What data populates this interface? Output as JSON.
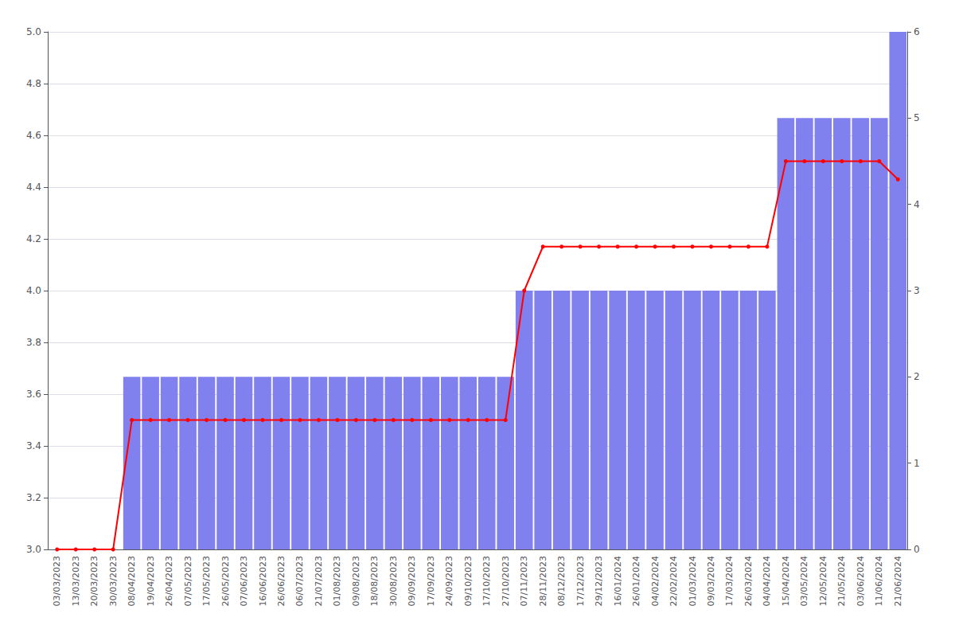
{
  "chart_data": {
    "type": "bar",
    "categories": [
      "03/03/2023",
      "13/03/2023",
      "20/03/2023",
      "30/03/2023",
      "08/04/2023",
      "19/04/2023",
      "26/04/2023",
      "07/05/2023",
      "17/05/2023",
      "26/05/2023",
      "07/06/2023",
      "16/06/2023",
      "26/06/2023",
      "06/07/2023",
      "21/07/2023",
      "01/08/2023",
      "09/08/2023",
      "18/08/2023",
      "30/08/2023",
      "09/09/2023",
      "17/09/2023",
      "24/09/2023",
      "09/10/2023",
      "17/10/2023",
      "27/10/2023",
      "07/11/2023",
      "28/11/2023",
      "08/12/2023",
      "17/12/2023",
      "29/12/2023",
      "16/01/2024",
      "26/01/2024",
      "04/02/2024",
      "22/02/2024",
      "01/03/2024",
      "09/03/2024",
      "17/03/2024",
      "26/03/2024",
      "04/04/2024",
      "15/04/2024",
      "03/05/2024",
      "12/05/2024",
      "21/05/2024",
      "03/06/2024",
      "11/06/2024",
      "21/06/2024"
    ],
    "series": [
      {
        "type": "bar",
        "axis": "y2",
        "color": "#8080ee",
        "values": [
          0,
          0,
          0,
          0,
          2,
          2,
          2,
          2,
          2,
          2,
          2,
          2,
          2,
          2,
          2,
          2,
          2,
          2,
          2,
          2,
          2,
          2,
          2,
          2,
          2,
          3,
          3,
          3,
          3,
          3,
          3,
          3,
          3,
          3,
          3,
          3,
          3,
          3,
          3,
          5,
          5,
          5,
          5,
          5,
          5,
          6
        ]
      },
      {
        "type": "line",
        "axis": "y",
        "color": "#ff0000",
        "marker": "circle",
        "values": [
          3.0,
          3.0,
          3.0,
          3.0,
          3.5,
          3.5,
          3.5,
          3.5,
          3.5,
          3.5,
          3.5,
          3.5,
          3.5,
          3.5,
          3.5,
          3.5,
          3.5,
          3.5,
          3.5,
          3.5,
          3.5,
          3.5,
          3.5,
          3.5,
          3.5,
          4.0,
          4.17,
          4.17,
          4.17,
          4.17,
          4.17,
          4.17,
          4.17,
          4.17,
          4.17,
          4.17,
          4.17,
          4.17,
          4.17,
          4.5,
          4.5,
          4.5,
          4.5,
          4.5,
          4.5,
          4.43
        ]
      }
    ],
    "ylim": [
      3.0,
      5.0
    ],
    "yticks": [
      {
        "value": 3,
        "label": "3.0"
      },
      3.2,
      3.4,
      3.6,
      3.8,
      {
        "value": 4,
        "label": "4.0"
      },
      4.2,
      4.4,
      4.6,
      4.8,
      {
        "value": 5,
        "label": "5.0"
      }
    ],
    "y2lim": [
      0,
      6
    ],
    "y2ticks": [
      0,
      1,
      2,
      3,
      4,
      5,
      6
    ],
    "grid": true
  }
}
